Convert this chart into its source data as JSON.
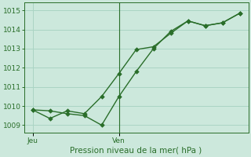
{
  "xlabel": "Pression niveau de la mer( hPa )",
  "background_color": "#cce8dc",
  "grid_color": "#aad4c4",
  "line_color": "#2a6e2a",
  "ylim": [
    1008.6,
    1015.4
  ],
  "yticks": [
    1009,
    1010,
    1011,
    1012,
    1013,
    1014,
    1015
  ],
  "day_labels": [
    "Jeu",
    "Ven"
  ],
  "day_positions": [
    0,
    5
  ],
  "vline_x": 5,
  "line1_x": [
    0,
    1,
    2,
    3,
    4,
    5,
    6,
    7,
    8,
    9,
    10,
    11,
    12
  ],
  "line1_y": [
    1009.8,
    1009.35,
    1009.75,
    1009.6,
    1010.5,
    1011.7,
    1012.95,
    1013.1,
    1013.8,
    1014.45,
    1014.2,
    1014.35,
    1014.85
  ],
  "line2_x": [
    0,
    1,
    2,
    3,
    4,
    5,
    6,
    7,
    8,
    9,
    10,
    11,
    12
  ],
  "line2_y": [
    1009.8,
    1009.75,
    1009.6,
    1009.5,
    1009.0,
    1010.5,
    1011.8,
    1013.0,
    1013.9,
    1014.45,
    1014.2,
    1014.35,
    1014.85
  ],
  "xlim": [
    -0.5,
    12.5
  ],
  "xlabel_fontsize": 7.5,
  "tick_fontsize": 6.5,
  "linewidth": 1.0,
  "markersize": 2.8
}
